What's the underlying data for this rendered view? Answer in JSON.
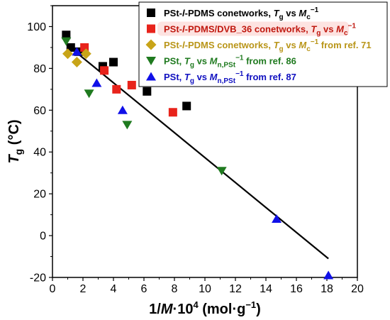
{
  "chart_data": {
    "type": "scatter",
    "xlabel": "1/M·10⁴ (mol·g⁻¹)",
    "ylabel": "Tg (°C)",
    "xlim": [
      0,
      20
    ],
    "ylim": [
      -20,
      110
    ],
    "x_ticks": [
      "0",
      "2",
      "4",
      "6",
      "8",
      "10",
      "12",
      "14",
      "16",
      "18",
      "20"
    ],
    "y_ticks": [
      "-20",
      "0",
      "20",
      "40",
      "60",
      "80",
      "100"
    ],
    "legend_position": "top-right",
    "series": [
      {
        "name": "PSt-l-PDMS conetworks, Tg vs Mc−1",
        "marker": "square",
        "color": "#000000",
        "x": [
          0.9,
          1.2,
          1.7,
          3.3,
          4.0,
          6.2,
          8.8
        ],
        "y": [
          96,
          90,
          88,
          81,
          83,
          69,
          62
        ]
      },
      {
        "name": "PSt-l-PDMS/DVB_36 conetworks, Tg vs Mc−1",
        "marker": "square",
        "color": "#e8231b",
        "x": [
          2.1,
          3.4,
          4.2,
          5.2,
          7.9
        ],
        "y": [
          90,
          79,
          70,
          72,
          59
        ]
      },
      {
        "name": "PSt-l-PDMS conetworks, Tg vs Mc−1 from ref. 71",
        "marker": "diamond",
        "color": "#c8a418",
        "x": [
          1.0,
          1.6,
          2.2
        ],
        "y": [
          87,
          83,
          87
        ]
      },
      {
        "name": "PSt, Tg vs Mn,PSt−1 from ref. 86",
        "marker": "triangle-down",
        "color": "#1f7a1f",
        "x": [
          0.9,
          2.4,
          4.9,
          11.1
        ],
        "y": [
          93,
          68,
          53,
          31
        ]
      },
      {
        "name": "PSt, Tg vs Mn,PSt−1 from ref. 87",
        "marker": "triangle-up",
        "color": "#1010e8",
        "x": [
          1.6,
          2.9,
          4.6,
          14.7,
          18.1
        ],
        "y": [
          88,
          73,
          60,
          8,
          -19
        ]
      }
    ],
    "fit_line": {
      "x": [
        1.0,
        18.1
      ],
      "y": [
        91,
        -11
      ],
      "color": "#000000"
    }
  },
  "legend": {
    "entries": [
      {
        "prefix": "PSt-",
        "l": "l",
        "mid": "-PDMS conetworks, ",
        "T": "T",
        "Tsub": "g",
        "vs": " vs ",
        "M": "M",
        "Msub": "c",
        "sup": "−1",
        "suffix": "",
        "color": "#000000",
        "bg": "#ffffff"
      },
      {
        "prefix": "PSt-",
        "l": "l",
        "mid": "-PDMS/DVB_36 conetworks, ",
        "T": "T",
        "Tsub": "g",
        "vs": " vs ",
        "M": "M",
        "Msub": "c",
        "sup": "−1",
        "suffix": "",
        "color": "#c0180f",
        "bg": "#fde3e1"
      },
      {
        "prefix": "PSt-",
        "l": "l",
        "mid": "-PDMS conetworks, ",
        "T": "T",
        "Tsub": "g",
        "vs": " vs ",
        "M": "M",
        "Msub": "c",
        "sup": "−1",
        "suffix": " from ref. 71",
        "color": "#b99518",
        "bg": "#ffffff"
      },
      {
        "prefix": "PSt, ",
        "l": "",
        "mid": "",
        "T": "T",
        "Tsub": "g",
        "vs": " vs ",
        "M": "M",
        "Msub": "n,PSt",
        "sup": "−1",
        "suffix": " from ref. 86",
        "color": "#1f7a1f",
        "bg": "#ffffff"
      },
      {
        "prefix": "PSt, ",
        "l": "",
        "mid": "",
        "T": "T",
        "Tsub": "g",
        "vs": " vs ",
        "M": "M",
        "Msub": "n,PSt",
        "sup": "−1",
        "suffix": " from ref. 87",
        "color": "#1010c0",
        "bg": "#ffffff"
      }
    ]
  },
  "axis_titles": {
    "x": {
      "pre": "1/",
      "M": "M",
      "post": "·10",
      "exp": "4",
      "unit": " (mol·g",
      "unit_exp": "−1",
      "close": ")"
    },
    "y": {
      "T": "T",
      "sub": "g",
      "unit": " (°C)"
    }
  }
}
